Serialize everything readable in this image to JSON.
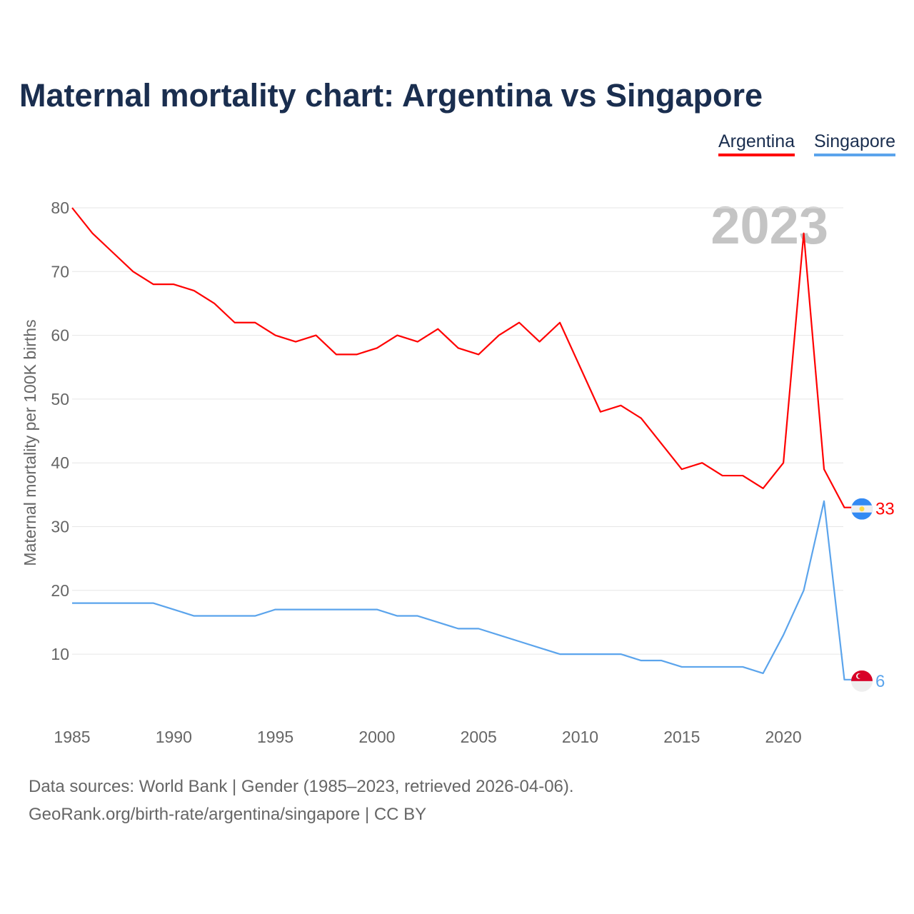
{
  "chart_data": {
    "type": "line",
    "title": "Maternal mortality chart: Argentina vs Singapore",
    "ylabel": "Maternal mortality per 100K births",
    "xlabel": "",
    "year_label": "2023",
    "ylim": [
      0,
      80
    ],
    "xlim": [
      1985,
      2023
    ],
    "y_ticks": [
      10,
      20,
      30,
      40,
      50,
      60,
      70,
      80
    ],
    "x_ticks": [
      1985,
      1990,
      1995,
      2000,
      2005,
      2010,
      2015,
      2020
    ],
    "grid": true,
    "legend_position": "top-right",
    "x": [
      1985,
      1986,
      1987,
      1988,
      1989,
      1990,
      1991,
      1992,
      1993,
      1994,
      1995,
      1996,
      1997,
      1998,
      1999,
      2000,
      2001,
      2002,
      2003,
      2004,
      2005,
      2006,
      2007,
      2008,
      2009,
      2010,
      2011,
      2012,
      2013,
      2014,
      2015,
      2016,
      2017,
      2018,
      2019,
      2020,
      2021,
      2022,
      2023
    ],
    "series": [
      {
        "name": "Argentina",
        "color": "#ff0000",
        "end_label": "33",
        "values": [
          80,
          76,
          73,
          70,
          68,
          68,
          67,
          65,
          62,
          62,
          60,
          59,
          60,
          57,
          57,
          58,
          60,
          59,
          61,
          58,
          57,
          60,
          62,
          59,
          62,
          55,
          48,
          49,
          47,
          43,
          39,
          40,
          38,
          38,
          36,
          40,
          76,
          39,
          33
        ]
      },
      {
        "name": "Singapore",
        "color": "#5ba4ec",
        "end_label": "6",
        "values": [
          18,
          18,
          18,
          18,
          18,
          17,
          16,
          16,
          16,
          16,
          17,
          17,
          17,
          17,
          17,
          17,
          16,
          16,
          15,
          14,
          14,
          13,
          12,
          11,
          10,
          10,
          10,
          10,
          9,
          9,
          8,
          8,
          8,
          8,
          7,
          13,
          20,
          34,
          6
        ]
      }
    ]
  },
  "footer": {
    "line1": "Data sources: World Bank | Gender (1985–2023, retrieved 2026-04-06).",
    "line2": "GeoRank.org/birth-rate/argentina/singapore | CC BY"
  }
}
